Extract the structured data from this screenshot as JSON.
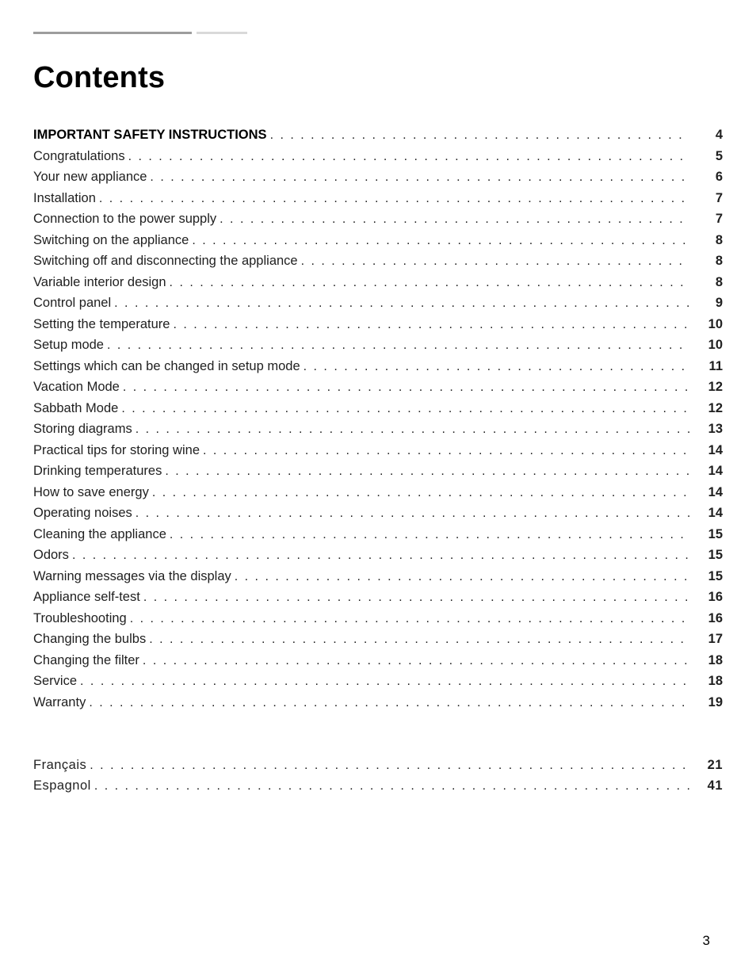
{
  "title": "Contents",
  "page_number": "3",
  "colors": {
    "background": "#ffffff",
    "text": "#000000",
    "toc_text": "#1f1f1f",
    "rule_dark": "#9d9d9d",
    "rule_light": "#d9d9d9"
  },
  "typography": {
    "title_fontsize_pt": 29,
    "title_weight": 700,
    "toc_fontsize_pt": 12.5,
    "page_number_fontsize_pt": 13,
    "font_family": "Arial"
  },
  "toc": {
    "entries": [
      {
        "label": "IMPORTANT SAFETY INSTRUCTIONS",
        "page": "4",
        "bold": true
      },
      {
        "label": "Congratulations",
        "page": "5",
        "bold": false
      },
      {
        "label": "Your new appliance",
        "page": "6",
        "bold": false
      },
      {
        "label": "Installation",
        "page": "7",
        "bold": false
      },
      {
        "label": "Connection to the power supply",
        "page": "7",
        "bold": false
      },
      {
        "label": "Switching on the appliance",
        "page": "8",
        "bold": false
      },
      {
        "label": "Switching off and disconnecting the appliance",
        "page": "8",
        "bold": false
      },
      {
        "label": "Variable interior design",
        "page": "8",
        "bold": false
      },
      {
        "label": "Control panel",
        "page": "9",
        "bold": false
      },
      {
        "label": "Setting the temperature",
        "page": "10",
        "bold": false
      },
      {
        "label": "Setup mode",
        "page": "10",
        "bold": false
      },
      {
        "label": "Settings which can be changed in setup mode",
        "page": "11",
        "bold": false
      },
      {
        "label": "Vacation Mode",
        "page": "12",
        "bold": false
      },
      {
        "label": "Sabbath Mode",
        "page": "12",
        "bold": false
      },
      {
        "label": "Storing diagrams",
        "page": "13",
        "bold": false
      },
      {
        "label": "Practical tips for storing wine",
        "page": "14",
        "bold": false
      },
      {
        "label": "Drinking temperatures",
        "page": "14",
        "bold": false
      },
      {
        "label": "How to save energy",
        "page": "14",
        "bold": false
      },
      {
        "label": "Operating noises",
        "page": "14",
        "bold": false
      },
      {
        "label": "Cleaning the appliance",
        "page": "15",
        "bold": false
      },
      {
        "label": "Odors",
        "page": "15",
        "bold": false
      },
      {
        "label": "Warning messages via the display",
        "page": "15",
        "bold": false
      },
      {
        "label": "Appliance self-test",
        "page": "16",
        "bold": false
      },
      {
        "label": "Troubleshooting",
        "page": "16",
        "bold": false
      },
      {
        "label": "Changing the bulbs",
        "page": "17",
        "bold": false
      },
      {
        "label": "Changing the filter",
        "page": "18",
        "bold": false
      },
      {
        "label": "Service",
        "page": "18",
        "bold": false
      },
      {
        "label": "Warranty",
        "page": "19",
        "bold": false
      }
    ]
  },
  "secondary_toc": {
    "entries": [
      {
        "label": "Français",
        "page": "21"
      },
      {
        "label": "Espagnol",
        "page": "41"
      }
    ]
  }
}
